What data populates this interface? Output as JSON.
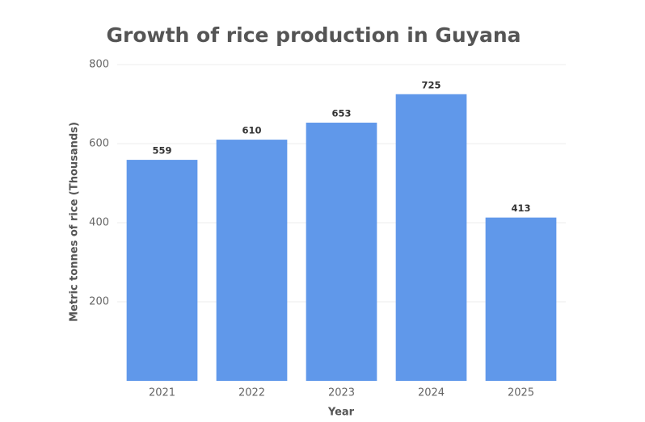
{
  "chart_data": {
    "type": "bar",
    "title": "Growth of rice production in Guyana",
    "x_label": "Year",
    "y_label": "Metric tonnes of rice (Thousands)",
    "categories": [
      "2021",
      "2022",
      "2023",
      "2024",
      "2025"
    ],
    "values": [
      559,
      610,
      653,
      725,
      413
    ],
    "color": "#6098ea",
    "ylim": [
      0,
      800
    ],
    "yticks": [
      200,
      400,
      600,
      800
    ],
    "grid": true
  }
}
